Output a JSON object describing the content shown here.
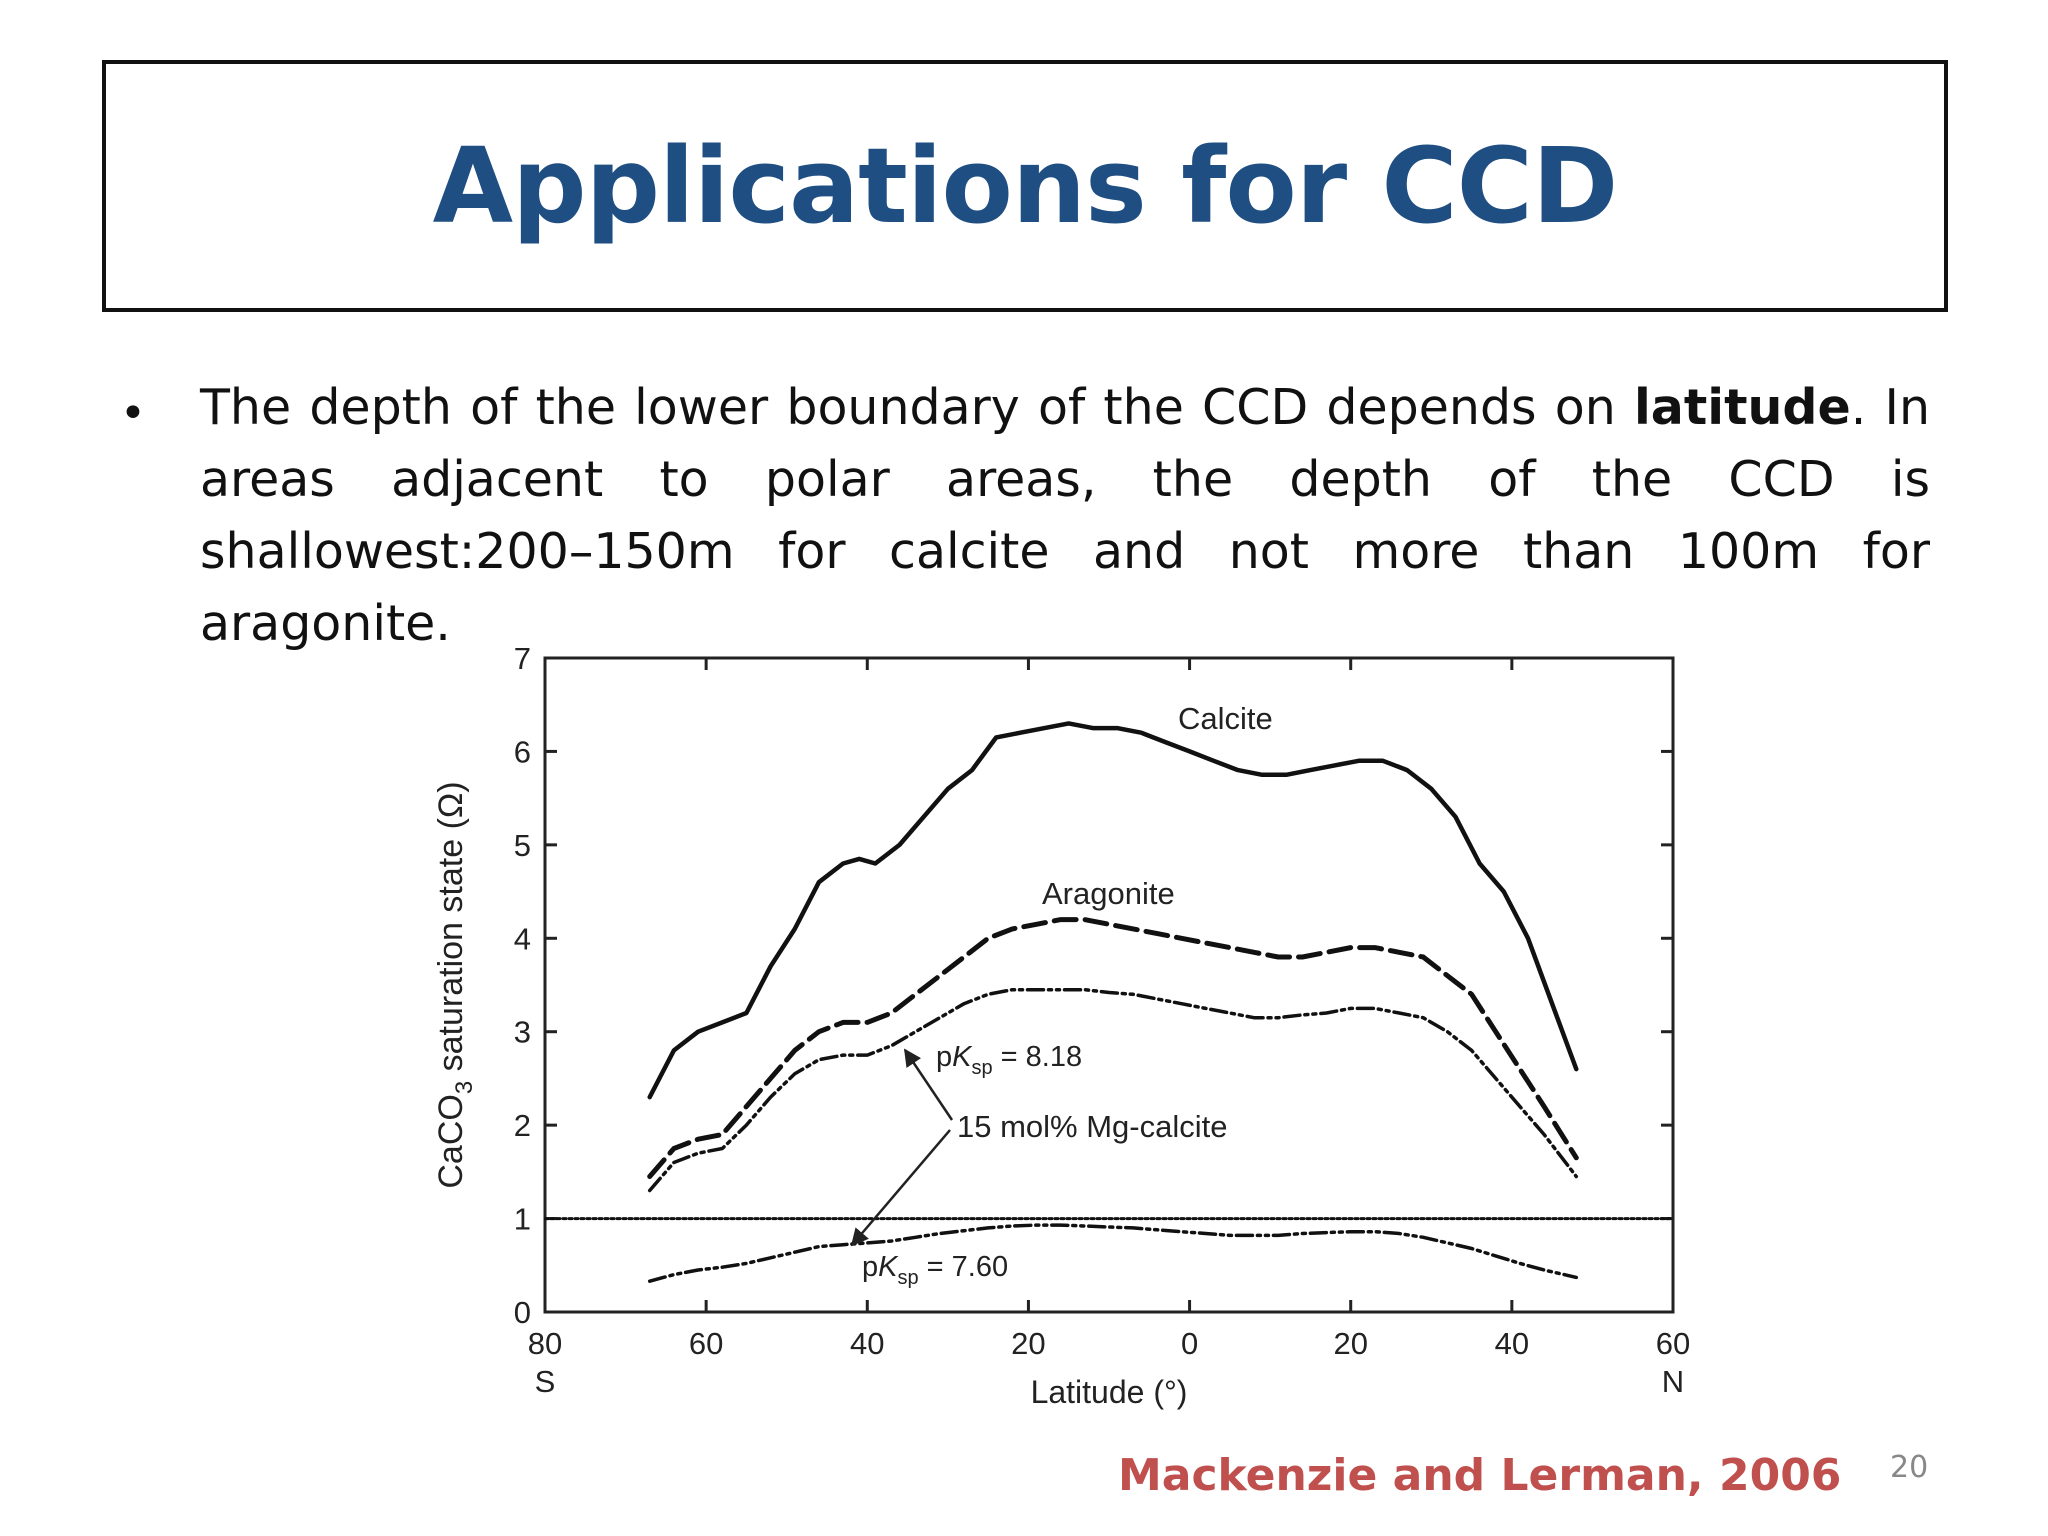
{
  "slide": {
    "title": "Applications for CCD",
    "bullet": {
      "before": "The depth of the lower boundary of the CCD depends on ",
      "bold": "latitude",
      "after": ". In areas adjacent to polar areas, the depth of the CCD is shallowest:200–150m for calcite and not more than 100m for aragonite."
    },
    "citation": "Mackenzie and Lerman, 2006",
    "page_number": "20"
  },
  "chart_data": {
    "type": "line",
    "xlabel": "Latitude (°)",
    "ylabel_parts": [
      "CaCO",
      "3",
      " saturation state (Ω)"
    ],
    "xlim": [
      -80,
      60
    ],
    "ylim": [
      0,
      7
    ],
    "x_ticks": [
      {
        "value": -80,
        "label": "80",
        "sub": "S"
      },
      {
        "value": -60,
        "label": "60",
        "sub": ""
      },
      {
        "value": -40,
        "label": "40",
        "sub": ""
      },
      {
        "value": -20,
        "label": "20",
        "sub": ""
      },
      {
        "value": 0,
        "label": "0",
        "sub": ""
      },
      {
        "value": 20,
        "label": "20",
        "sub": ""
      },
      {
        "value": 40,
        "label": "40",
        "sub": ""
      },
      {
        "value": 60,
        "label": "60",
        "sub": "N"
      }
    ],
    "y_ticks": [
      0,
      1,
      2,
      3,
      4,
      5,
      6,
      7
    ],
    "grid": false,
    "series": [
      {
        "name": "Calcite",
        "style": "solid",
        "x": [
          -67,
          -64,
          -61,
          -58,
          -55,
          -52,
          -49,
          -46,
          -43,
          -41,
          -39,
          -36,
          -33,
          -30,
          -27,
          -24,
          -21,
          -18,
          -15,
          -12,
          -9,
          -6,
          -3,
          0,
          3,
          6,
          9,
          12,
          15,
          18,
          21,
          24,
          27,
          30,
          33,
          36,
          39,
          42,
          45,
          48
        ],
        "y": [
          2.3,
          2.8,
          3.0,
          3.1,
          3.2,
          3.7,
          4.1,
          4.6,
          4.8,
          4.85,
          4.8,
          5.0,
          5.3,
          5.6,
          5.8,
          6.15,
          6.2,
          6.25,
          6.3,
          6.25,
          6.25,
          6.2,
          6.1,
          6.0,
          5.9,
          5.8,
          5.75,
          5.75,
          5.8,
          5.85,
          5.9,
          5.9,
          5.8,
          5.6,
          5.3,
          4.8,
          4.5,
          4.0,
          3.3,
          2.6
        ]
      },
      {
        "name": "Aragonite",
        "style": "dashed",
        "x": [
          -67,
          -64,
          -61,
          -58,
          -55,
          -52,
          -49,
          -46,
          -43,
          -40,
          -37,
          -34,
          -31,
          -28,
          -25,
          -22,
          -19,
          -16,
          -13,
          -10,
          -7,
          -4,
          -1,
          2,
          5,
          8,
          11,
          14,
          17,
          20,
          23,
          26,
          29,
          32,
          35,
          38,
          41,
          44,
          48
        ],
        "y": [
          1.45,
          1.75,
          1.85,
          1.9,
          2.2,
          2.5,
          2.8,
          3.0,
          3.1,
          3.1,
          3.2,
          3.4,
          3.6,
          3.8,
          4.0,
          4.1,
          4.15,
          4.2,
          4.2,
          4.15,
          4.1,
          4.05,
          4.0,
          3.95,
          3.9,
          3.85,
          3.8,
          3.8,
          3.85,
          3.9,
          3.9,
          3.85,
          3.8,
          3.6,
          3.4,
          3.0,
          2.6,
          2.2,
          1.65
        ]
      },
      {
        "name": "pK_sp = 8.18",
        "style": "dash-dot-dot",
        "x": [
          -67,
          -64,
          -61,
          -58,
          -55,
          -52,
          -49,
          -46,
          -43,
          -40,
          -37,
          -34,
          -31,
          -28,
          -25,
          -22,
          -19,
          -16,
          -13,
          -10,
          -7,
          -4,
          -1,
          2,
          5,
          8,
          11,
          14,
          17,
          20,
          23,
          26,
          29,
          32,
          35,
          38,
          41,
          44,
          48
        ],
        "y": [
          1.3,
          1.6,
          1.7,
          1.75,
          2.0,
          2.3,
          2.55,
          2.7,
          2.75,
          2.75,
          2.85,
          3.0,
          3.15,
          3.3,
          3.4,
          3.45,
          3.45,
          3.45,
          3.45,
          3.42,
          3.4,
          3.35,
          3.3,
          3.25,
          3.2,
          3.15,
          3.15,
          3.18,
          3.2,
          3.25,
          3.25,
          3.2,
          3.15,
          3.0,
          2.8,
          2.5,
          2.2,
          1.9,
          1.45
        ]
      },
      {
        "name": "pK_sp = 7.60",
        "style": "dash-dot-dot",
        "x": [
          -67,
          -64,
          -61,
          -58,
          -55,
          -52,
          -49,
          -46,
          -43,
          -40,
          -37,
          -34,
          -31,
          -28,
          -25,
          -22,
          -19,
          -16,
          -13,
          -10,
          -7,
          -4,
          -1,
          2,
          5,
          8,
          11,
          14,
          17,
          20,
          23,
          26,
          29,
          32,
          35,
          38,
          41,
          44,
          48
        ],
        "y": [
          0.33,
          0.4,
          0.45,
          0.48,
          0.52,
          0.58,
          0.64,
          0.7,
          0.72,
          0.74,
          0.76,
          0.8,
          0.84,
          0.87,
          0.9,
          0.92,
          0.93,
          0.93,
          0.92,
          0.91,
          0.9,
          0.88,
          0.86,
          0.84,
          0.82,
          0.82,
          0.82,
          0.84,
          0.85,
          0.86,
          0.86,
          0.84,
          0.8,
          0.74,
          0.68,
          0.6,
          0.52,
          0.45,
          0.37
        ]
      },
      {
        "name": "",
        "style": "dotted",
        "x": [
          -80,
          60
        ],
        "y": [
          1.0,
          1.0
        ]
      }
    ],
    "annotations": {
      "calcite": "Calcite",
      "aragonite": "Aragonite",
      "pk_upper_prefix": "p",
      "pk_upper_k": "K",
      "pk_upper_sub": "sp",
      "pk_upper_value": " = 8.18",
      "pk_lower_prefix": "p",
      "pk_lower_k": "K",
      "pk_lower_sub": "sp",
      "pk_lower_value": " = 7.60",
      "mg_calcite": "15 mol% Mg-calcite"
    }
  }
}
